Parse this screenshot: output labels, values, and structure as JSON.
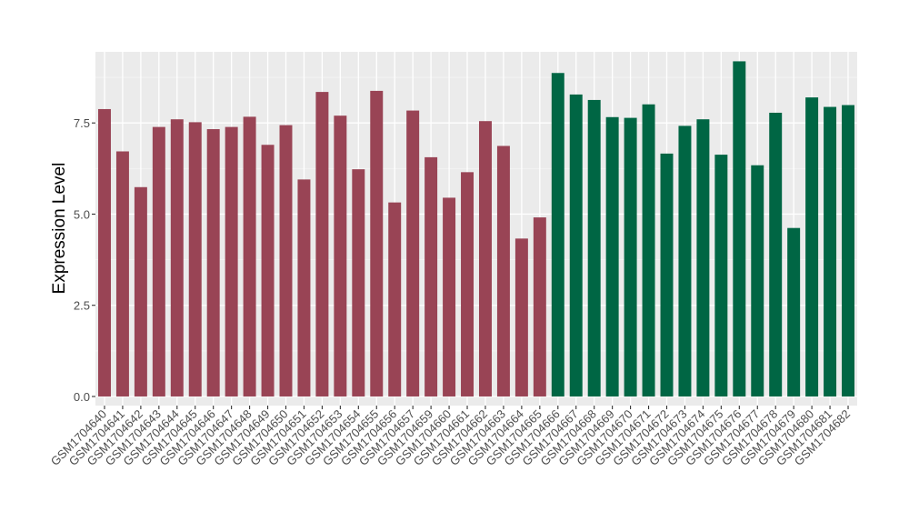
{
  "chart_data": {
    "type": "bar",
    "title": "",
    "xlabel": "",
    "ylabel": "Expression Level",
    "ylim": [
      -0.25,
      9.45
    ],
    "yticks": [
      0.0,
      2.5,
      5.0,
      7.5
    ],
    "ytick_labels": [
      "0.0",
      "2.5",
      "5.0",
      "7.5"
    ],
    "grid": true,
    "background": "#ebebeb",
    "categories": [
      "GSM1704640",
      "GSM1704641",
      "GSM1704642",
      "GSM1704643",
      "GSM1704644",
      "GSM1704645",
      "GSM1704646",
      "GSM1704647",
      "GSM1704648",
      "GSM1704649",
      "GSM1704650",
      "GSM1704651",
      "GSM1704652",
      "GSM1704653",
      "GSM1704654",
      "GSM1704655",
      "GSM1704656",
      "GSM1704657",
      "GSM1704659",
      "GSM1704660",
      "GSM1704661",
      "GSM1704662",
      "GSM1704663",
      "GSM1704664",
      "GSM1704665",
      "GSM1704666",
      "GSM1704667",
      "GSM1704668",
      "GSM1704669",
      "GSM1704670",
      "GSM1704671",
      "GSM1704672",
      "GSM1704673",
      "GSM1704674",
      "GSM1704675",
      "GSM1704676",
      "GSM1704677",
      "GSM1704678",
      "GSM1704679",
      "GSM1704680",
      "GSM1704681",
      "GSM1704682"
    ],
    "values": [
      7.88,
      6.72,
      5.74,
      7.39,
      7.6,
      7.52,
      7.33,
      7.39,
      7.67,
      6.9,
      7.44,
      5.95,
      8.35,
      7.7,
      6.23,
      8.38,
      5.32,
      7.84,
      6.56,
      5.45,
      6.15,
      7.55,
      6.87,
      4.33,
      4.91,
      8.87,
      8.28,
      8.13,
      7.66,
      7.64,
      8.01,
      6.66,
      7.42,
      7.6,
      6.63,
      9.19,
      6.34,
      7.78,
      4.62,
      8.2,
      7.94,
      7.99
    ],
    "bar_colors": [
      "#994455",
      "#994455",
      "#994455",
      "#994455",
      "#994455",
      "#994455",
      "#994455",
      "#994455",
      "#994455",
      "#994455",
      "#994455",
      "#994455",
      "#994455",
      "#994455",
      "#994455",
      "#994455",
      "#994455",
      "#994455",
      "#994455",
      "#994455",
      "#994455",
      "#994455",
      "#994455",
      "#994455",
      "#994455",
      "#006644",
      "#006644",
      "#006644",
      "#006644",
      "#006644",
      "#006644",
      "#006644",
      "#006644",
      "#006644",
      "#006644",
      "#006644",
      "#006644",
      "#006644",
      "#006644",
      "#006644",
      "#006644",
      "#006644"
    ]
  }
}
